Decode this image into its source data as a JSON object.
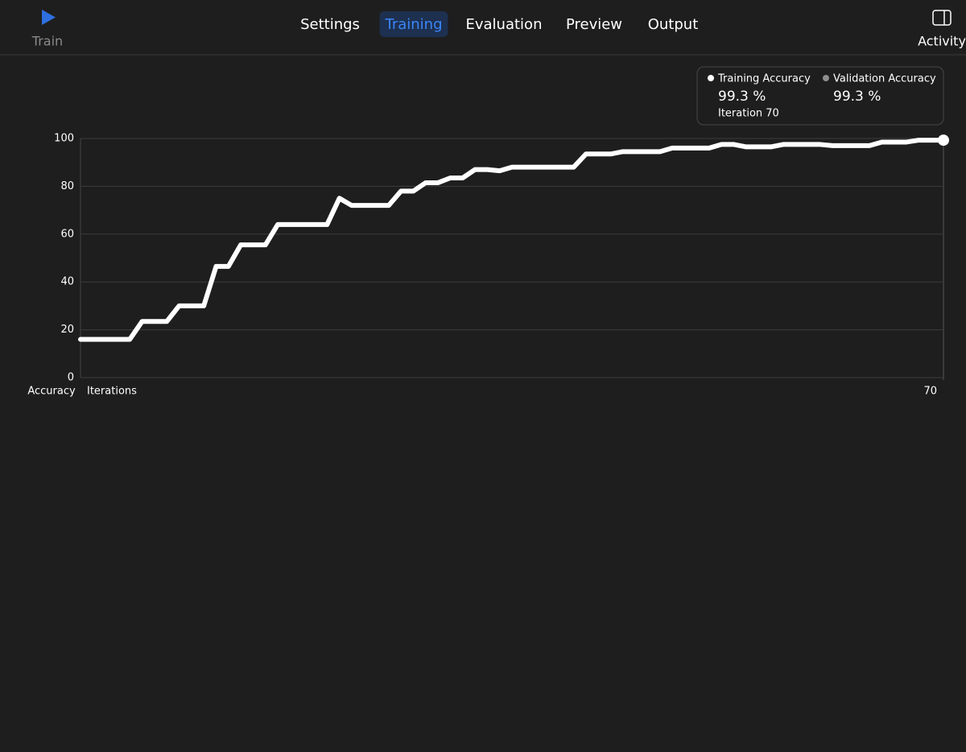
{
  "toolbar": {
    "train": "Train",
    "tabs": [
      "Settings",
      "Training",
      "Evaluation",
      "Preview",
      "Output"
    ],
    "selected_tab": 1,
    "activity": "Activity"
  },
  "readout": {
    "training_value": "99.3 %",
    "training_iteration": "Iteration 70",
    "validation_name": "Validation Accuracy",
    "validation_value": "99.3 %"
  },
  "chart_data": {
    "type": "line",
    "ylabel": "Accuracy",
    "xlabel": "Iterations",
    "x": [
      0,
      1,
      2,
      3,
      4,
      5,
      6,
      7,
      8,
      9,
      10,
      11,
      12,
      13,
      14,
      15,
      16,
      17,
      18,
      19,
      20,
      21,
      22,
      23,
      24,
      25,
      26,
      27,
      28,
      29,
      30,
      31,
      32,
      33,
      34,
      35,
      36,
      37,
      38,
      39,
      40,
      41,
      42,
      43,
      44,
      45,
      46,
      47,
      48,
      49,
      50,
      51,
      52,
      53,
      54,
      55,
      56,
      57,
      58,
      59,
      60,
      61,
      62,
      63,
      64,
      65,
      66,
      67,
      68,
      69,
      70
    ],
    "series": [
      {
        "name": "Training Accuracy",
        "color": "#ffffff",
        "values": [
          16,
          16,
          16,
          16,
          16,
          23.5,
          23.5,
          23.5,
          30,
          30,
          30,
          46.5,
          46.5,
          55.5,
          55.5,
          55.5,
          64,
          64,
          64,
          64,
          64,
          75,
          72,
          72,
          72,
          72,
          78,
          78,
          81.5,
          81.5,
          83.5,
          83.5,
          87,
          87,
          86.5,
          88,
          88,
          88,
          88,
          88,
          88,
          93.5,
          93.5,
          93.5,
          94.5,
          94.5,
          94.5,
          94.5,
          96,
          96,
          96,
          96,
          97.5,
          97.5,
          96.5,
          96.5,
          96.5,
          97.5,
          97.5,
          97.5,
          97.5,
          97,
          97,
          97,
          97,
          98.5,
          98.5,
          98.5,
          99.3,
          99.3,
          99.3
        ]
      }
    ],
    "xlim": [
      0,
      70
    ],
    "ylim": [
      0,
      100
    ],
    "xticks": [
      70
    ],
    "yticks": [
      0,
      20,
      40,
      60,
      80,
      100
    ],
    "grid": true
  }
}
